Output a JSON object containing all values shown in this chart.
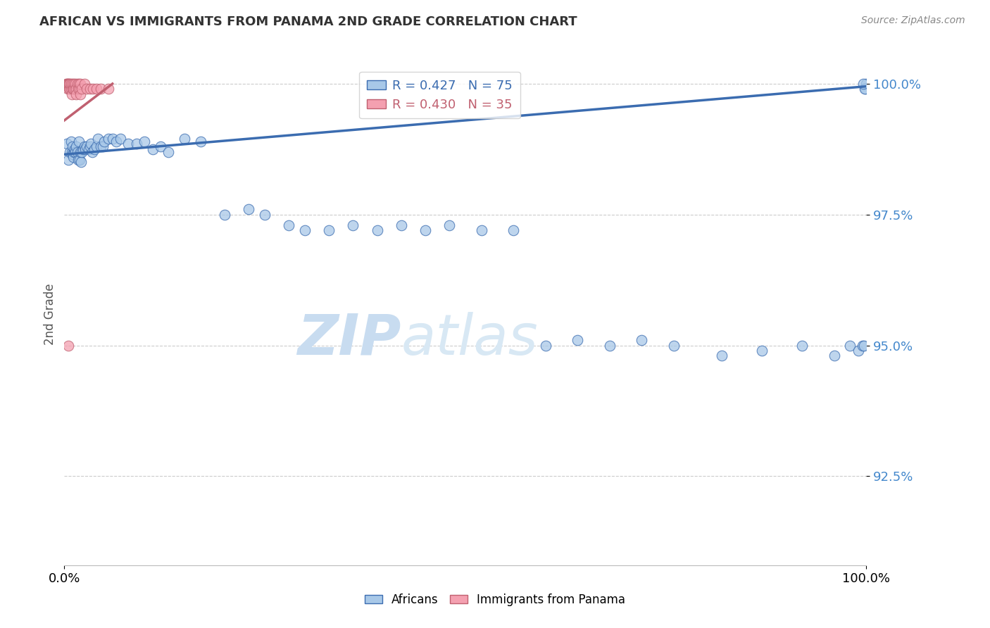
{
  "title": "AFRICAN VS IMMIGRANTS FROM PANAMA 2ND GRADE CORRELATION CHART",
  "source": "Source: ZipAtlas.com",
  "ylabel": "2nd Grade",
  "xlim": [
    0.0,
    1.0
  ],
  "ylim": [
    0.908,
    1.004
  ],
  "yticks": [
    0.925,
    0.95,
    0.975,
    1.0
  ],
  "ytick_labels": [
    "92.5%",
    "95.0%",
    "97.5%",
    "100.0%"
  ],
  "xtick_labels": [
    "0.0%",
    "100.0%"
  ],
  "xticks": [
    0.0,
    1.0
  ],
  "watermark_zip": "ZIP",
  "watermark_atlas": "atlas",
  "legend_blue_r": "R = 0.427",
  "legend_blue_n": "N = 75",
  "legend_pink_r": "R = 0.430",
  "legend_pink_n": "N = 35",
  "blue_scatter_x": [
    0.003,
    0.005,
    0.007,
    0.008,
    0.009,
    0.01,
    0.01,
    0.011,
    0.012,
    0.013,
    0.014,
    0.015,
    0.016,
    0.017,
    0.018,
    0.019,
    0.02,
    0.021,
    0.022,
    0.023,
    0.025,
    0.026,
    0.028,
    0.03,
    0.032,
    0.033,
    0.035,
    0.037,
    0.04,
    0.042,
    0.045,
    0.048,
    0.05,
    0.055,
    0.06,
    0.065,
    0.07,
    0.08,
    0.09,
    0.1,
    0.11,
    0.12,
    0.13,
    0.15,
    0.17,
    0.2,
    0.23,
    0.25,
    0.28,
    0.3,
    0.33,
    0.36,
    0.39,
    0.42,
    0.45,
    0.48,
    0.52,
    0.56,
    0.6,
    0.64,
    0.68,
    0.72,
    0.76,
    0.82,
    0.87,
    0.92,
    0.96,
    0.98,
    0.99,
    0.995,
    0.997,
    0.999,
    1.0,
    0.998,
    0.996
  ],
  "blue_scatter_y": [
    0.9885,
    0.9855,
    0.987,
    0.989,
    0.987,
    0.9865,
    0.988,
    0.986,
    0.987,
    0.9875,
    0.987,
    0.988,
    0.987,
    0.9855,
    0.989,
    0.9855,
    0.987,
    0.985,
    0.987,
    0.9875,
    0.988,
    0.9875,
    0.988,
    0.9875,
    0.988,
    0.9885,
    0.987,
    0.9875,
    0.988,
    0.9895,
    0.988,
    0.988,
    0.989,
    0.9895,
    0.9895,
    0.989,
    0.9895,
    0.9885,
    0.9885,
    0.989,
    0.9875,
    0.988,
    0.987,
    0.9895,
    0.989,
    0.975,
    0.976,
    0.975,
    0.973,
    0.972,
    0.972,
    0.973,
    0.972,
    0.973,
    0.972,
    0.973,
    0.972,
    0.972,
    0.95,
    0.951,
    0.95,
    0.951,
    0.95,
    0.948,
    0.949,
    0.95,
    0.948,
    0.95,
    0.949,
    0.95,
    0.95,
    0.999,
    1.0,
    0.999,
    1.0
  ],
  "pink_scatter_x": [
    0.002,
    0.003,
    0.004,
    0.004,
    0.005,
    0.006,
    0.006,
    0.007,
    0.007,
    0.008,
    0.008,
    0.009,
    0.01,
    0.01,
    0.011,
    0.012,
    0.013,
    0.014,
    0.015,
    0.015,
    0.016,
    0.017,
    0.018,
    0.019,
    0.02,
    0.02,
    0.022,
    0.025,
    0.028,
    0.032,
    0.036,
    0.04,
    0.045,
    0.055,
    0.005
  ],
  "pink_scatter_y": [
    1.0,
    1.0,
    0.999,
    1.0,
    1.0,
    0.999,
    1.0,
    0.999,
    1.0,
    0.999,
    1.0,
    0.998,
    0.999,
    1.0,
    0.999,
    1.0,
    0.999,
    1.0,
    0.999,
    0.998,
    1.0,
    0.999,
    1.0,
    0.999,
    1.0,
    0.998,
    0.999,
    1.0,
    0.999,
    0.999,
    0.999,
    0.999,
    0.999,
    0.999,
    0.95
  ],
  "blue_line_x": [
    0.0,
    1.0
  ],
  "blue_line_y": [
    0.9865,
    0.9995
  ],
  "pink_line_x": [
    0.0,
    0.06
  ],
  "pink_line_y": [
    0.993,
    1.0
  ],
  "blue_color": "#A8C8E8",
  "pink_color": "#F4A0B0",
  "blue_line_color": "#3B6CB0",
  "pink_line_color": "#C06070",
  "grid_color": "#CCCCCC",
  "watermark_color_zip": "#C8DCF0",
  "watermark_color_atlas": "#C8DCF0",
  "title_color": "#333333",
  "axis_label_color": "#555555",
  "right_tick_color": "#4488CC"
}
